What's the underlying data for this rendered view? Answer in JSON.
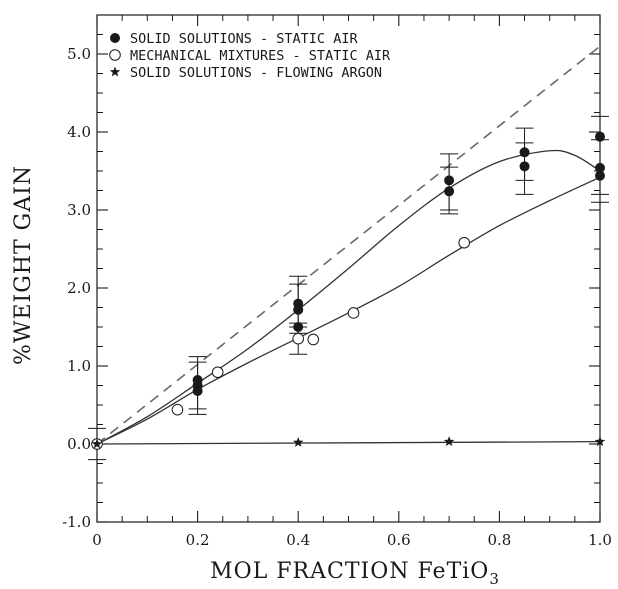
{
  "chart_data": {
    "type": "scatter",
    "xlabel": "MOL FRACTION FeTiO",
    "xlabel_subscript": "3",
    "ylabel": "%WEIGHT GAIN",
    "xlim": [
      0,
      1
    ],
    "ylim": [
      -1,
      5.5
    ],
    "x_ticks": [
      0,
      0.2,
      0.4,
      0.6,
      0.8,
      1.0
    ],
    "x_tick_labels": [
      "0",
      "0.2",
      "0.4",
      "0.6",
      "0.8",
      "1.0"
    ],
    "y_ticks": [
      -1,
      0,
      1,
      2,
      3,
      4,
      5
    ],
    "y_tick_labels": [
      "-1.0",
      "0.0",
      "1.0",
      "2.0",
      "3.0",
      "4.0",
      "5.0"
    ],
    "grid": false,
    "legend_position": "top-left",
    "series": [
      {
        "name": "SOLID SOLUTIONS - STATIC AIR",
        "marker": "filled-circle",
        "points": [
          {
            "x": 0,
            "y": 0
          },
          {
            "x": 0.2,
            "y": 0.82
          },
          {
            "x": 0.2,
            "y": 0.75
          },
          {
            "x": 0.2,
            "y": 0.68
          },
          {
            "x": 0.4,
            "y": 1.8
          },
          {
            "x": 0.4,
            "y": 1.72
          },
          {
            "x": 0.4,
            "y": 1.5
          },
          {
            "x": 0.7,
            "y": 3.38
          },
          {
            "x": 0.7,
            "y": 3.24
          },
          {
            "x": 0.85,
            "y": 3.74
          },
          {
            "x": 0.85,
            "y": 3.56
          },
          {
            "x": 1.0,
            "y": 3.94
          },
          {
            "x": 1.0,
            "y": 3.54
          },
          {
            "x": 1.0,
            "y": 3.44
          }
        ]
      },
      {
        "name": "MECHANICAL MIXTURES - STATIC AIR",
        "marker": "open-circle",
        "points": [
          {
            "x": 0,
            "y": 0
          },
          {
            "x": 0.16,
            "y": 0.44
          },
          {
            "x": 0.24,
            "y": 0.92
          },
          {
            "x": 0.4,
            "y": 1.35
          },
          {
            "x": 0.43,
            "y": 1.34
          },
          {
            "x": 0.51,
            "y": 1.68
          },
          {
            "x": 0.73,
            "y": 2.58
          }
        ]
      },
      {
        "name": "SOLID SOLUTIONS - FLOWING ARGON",
        "marker": "star",
        "points": [
          {
            "x": 0,
            "y": 0
          },
          {
            "x": 0.4,
            "y": 0.02
          },
          {
            "x": 0.7,
            "y": 0.03
          },
          {
            "x": 1.0,
            "y": 0.03
          }
        ]
      }
    ],
    "error_bars": [
      {
        "x": 0,
        "low": -0.2,
        "high": 0.2
      },
      {
        "x": 0.2,
        "low": 0.38,
        "high": 1.12
      },
      {
        "x": 0.2,
        "low": 0.45,
        "high": 1.05
      },
      {
        "x": 0.4,
        "low": 1.15,
        "high": 1.55
      },
      {
        "x": 0.4,
        "low": 1.42,
        "high": 2.15
      },
      {
        "x": 0.4,
        "low": 1.5,
        "high": 2.05
      },
      {
        "x": 0.7,
        "low": 2.95,
        "high": 3.72
      },
      {
        "x": 0.7,
        "low": 3.0,
        "high": 3.55
      },
      {
        "x": 0.85,
        "low": 3.2,
        "high": 4.05
      },
      {
        "x": 0.85,
        "low": 3.38,
        "high": 3.86
      },
      {
        "x": 1.0,
        "low": 3.1,
        "high": 4.2
      },
      {
        "x": 1.0,
        "low": 3.2,
        "high": 3.9
      }
    ],
    "curves": [
      {
        "name": "solid solutions fit",
        "style": "solid",
        "points": [
          [
            0,
            0
          ],
          [
            0.1,
            0.35
          ],
          [
            0.2,
            0.78
          ],
          [
            0.3,
            1.22
          ],
          [
            0.4,
            1.72
          ],
          [
            0.5,
            2.25
          ],
          [
            0.6,
            2.8
          ],
          [
            0.7,
            3.28
          ],
          [
            0.8,
            3.62
          ],
          [
            0.9,
            3.76
          ],
          [
            0.95,
            3.7
          ],
          [
            1.0,
            3.5
          ]
        ]
      },
      {
        "name": "mechanical mixtures fit",
        "style": "solid",
        "points": [
          [
            0,
            0
          ],
          [
            0.1,
            0.32
          ],
          [
            0.2,
            0.7
          ],
          [
            0.3,
            1.04
          ],
          [
            0.4,
            1.36
          ],
          [
            0.5,
            1.68
          ],
          [
            0.6,
            2.02
          ],
          [
            0.7,
            2.42
          ],
          [
            0.8,
            2.8
          ],
          [
            0.9,
            3.12
          ],
          [
            1.0,
            3.42
          ]
        ]
      },
      {
        "name": "argon fit",
        "style": "solid",
        "points": [
          [
            0,
            0
          ],
          [
            1.0,
            0.03
          ]
        ]
      },
      {
        "name": "ideal line",
        "style": "dashed",
        "points": [
          [
            0,
            0
          ],
          [
            1.0,
            5.1
          ]
        ]
      }
    ]
  }
}
